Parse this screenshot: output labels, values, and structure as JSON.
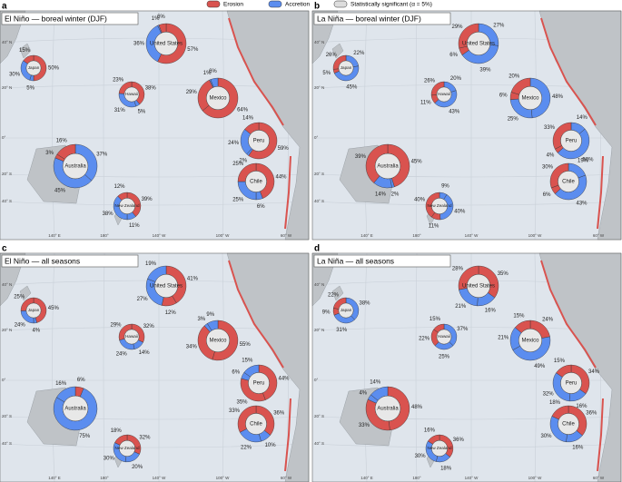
{
  "legend": {
    "erosion": "Erosion",
    "accretion": "Accretion",
    "significant": "Statistically significant (α = 5%)"
  },
  "colors": {
    "erosion": "#d9534f",
    "accretion": "#5b8def"
  },
  "map": {
    "lon_labels": [
      "140° E",
      "180°",
      "140° W",
      "100° W",
      "60° W"
    ],
    "lat_labels": [
      "40° N",
      "20° N",
      "0°",
      "20° S",
      "40° S"
    ]
  },
  "panels": [
    {
      "letter": "a",
      "title": "El Niño — boreal winter (DJF)",
      "donuts": [
        {
          "name": "Japan",
          "values": [
            50,
            5,
            30,
            15
          ],
          "value_labels": [
            "50%",
            "5%",
            "30%",
            "15%"
          ],
          "kinds": [
            "erosion",
            "accretion",
            "accretion",
            "erosion"
          ]
        },
        {
          "name": "United States",
          "values": [
            57,
            36,
            1,
            6
          ],
          "value_labels": [
            "57%",
            "36%",
            "1%",
            "6%"
          ],
          "kinds": [
            "erosion",
            "accretion",
            "accretion",
            "erosion"
          ]
        },
        {
          "name": "Hawaii",
          "values": [
            38,
            5,
            31,
            23
          ],
          "value_labels": [
            "38%",
            "5%",
            "31%",
            "23%"
          ],
          "kinds": [
            "erosion",
            "accretion",
            "accretion",
            "erosion"
          ]
        },
        {
          "name": "Mexico",
          "values": [
            64,
            29,
            1,
            6
          ],
          "value_labels": [
            "64%",
            "29%",
            "1%",
            "6%"
          ],
          "kinds": [
            "erosion",
            "erosion",
            "accretion",
            "accretion"
          ]
        },
        {
          "name": "Peru",
          "values": [
            59,
            2,
            24,
            14
          ],
          "value_labels": [
            "59%",
            "2%",
            "24%",
            "14%"
          ],
          "kinds": [
            "erosion",
            "accretion",
            "accretion",
            "erosion"
          ]
        },
        {
          "name": "Australia",
          "values": [
            37,
            45,
            3,
            16
          ],
          "value_labels": [
            "37%",
            "45%",
            "3%",
            "16%"
          ],
          "kinds": [
            "accretion",
            "accretion",
            "erosion",
            "erosion"
          ]
        },
        {
          "name": "Chile",
          "values": [
            44,
            6,
            25,
            25
          ],
          "value_labels": [
            "44%",
            "6%",
            "25%",
            "25%"
          ],
          "kinds": [
            "erosion",
            "accretion",
            "accretion",
            "erosion"
          ]
        },
        {
          "name": "New Zealand",
          "values": [
            39,
            11,
            38,
            12
          ],
          "value_labels": [
            "39%",
            "11%",
            "38%",
            "12%"
          ],
          "kinds": [
            "erosion",
            "accretion",
            "accretion",
            "erosion"
          ]
        }
      ]
    },
    {
      "letter": "b",
      "title": "La Niña — boreal winter (DJF)",
      "donuts": [
        {
          "name": "Japan",
          "values": [
            22,
            45,
            5,
            26
          ],
          "value_labels": [
            "22%",
            "45%",
            "5%",
            "26%"
          ],
          "kinds": [
            "accretion",
            "accretion",
            "erosion",
            "erosion"
          ]
        },
        {
          "name": "United States",
          "values": [
            27,
            39,
            6,
            29
          ],
          "value_labels": [
            "27%",
            "39%",
            "6%",
            "29%"
          ],
          "kinds": [
            "accretion",
            "accretion",
            "erosion",
            "erosion"
          ]
        },
        {
          "name": "Hawaii",
          "values": [
            20,
            43,
            11,
            26
          ],
          "value_labels": [
            "20%",
            "43%",
            "11%",
            "26%"
          ],
          "kinds": [
            "accretion",
            "accretion",
            "erosion",
            "erosion"
          ]
        },
        {
          "name": "Mexico",
          "values": [
            48,
            25,
            6,
            20
          ],
          "value_labels": [
            "48%",
            "25%",
            "6%",
            "20%"
          ],
          "kinds": [
            "accretion",
            "accretion",
            "erosion",
            "erosion"
          ]
        },
        {
          "name": "Peru",
          "values": [
            14,
            50,
            4,
            33
          ],
          "value_labels": [
            "14%",
            "50%",
            "4%",
            "33%"
          ],
          "kinds": [
            "accretion",
            "accretion",
            "erosion",
            "erosion"
          ]
        },
        {
          "name": "Australia",
          "values": [
            45,
            2,
            14,
            39
          ],
          "value_labels": [
            "45%",
            "2%",
            "14%",
            "39%"
          ],
          "kinds": [
            "erosion",
            "accretion",
            "accretion",
            "erosion"
          ]
        },
        {
          "name": "Chile",
          "values": [
            19,
            43,
            6,
            30
          ],
          "value_labels": [
            "19%",
            "43%",
            "6%",
            "30%"
          ],
          "kinds": [
            "accretion",
            "accretion",
            "erosion",
            "erosion"
          ]
        },
        {
          "name": "New Zealand",
          "values": [
            9,
            40,
            11,
            40
          ],
          "value_labels": [
            "9%",
            "40%",
            "11%",
            "40%"
          ],
          "kinds": [
            "accretion",
            "accretion",
            "erosion",
            "erosion"
          ]
        }
      ]
    },
    {
      "letter": "c",
      "title": "El Niño — all seasons",
      "donuts": [
        {
          "name": "Japan",
          "values": [
            45,
            4,
            24,
            25
          ],
          "value_labels": [
            "45%",
            "4%",
            "24%",
            "25%"
          ],
          "kinds": [
            "erosion",
            "accretion",
            "accretion",
            "erosion"
          ]
        },
        {
          "name": "United States",
          "values": [
            41,
            12,
            27,
            19
          ],
          "value_labels": [
            "41%",
            "12%",
            "27%",
            "19%"
          ],
          "kinds": [
            "erosion",
            "erosion",
            "accretion",
            "accretion"
          ]
        },
        {
          "name": "Hawaii",
          "values": [
            32,
            14,
            24,
            29
          ],
          "value_labels": [
            "32%",
            "14%",
            "24%",
            "29%"
          ],
          "kinds": [
            "erosion",
            "accretion",
            "accretion",
            "erosion"
          ]
        },
        {
          "name": "Mexico",
          "values": [
            55,
            34,
            3,
            9
          ],
          "value_labels": [
            "55%",
            "34%",
            "3%",
            "9%"
          ],
          "kinds": [
            "erosion",
            "erosion",
            "accretion",
            "accretion"
          ]
        },
        {
          "name": "Peru",
          "values": [
            44,
            35,
            6,
            15
          ],
          "value_labels": [
            "44%",
            "35%",
            "6%",
            "15%"
          ],
          "kinds": [
            "erosion",
            "erosion",
            "accretion",
            "accretion"
          ]
        },
        {
          "name": "Australia",
          "values": [
            6,
            75,
            16
          ],
          "value_labels": [
            "6%",
            "75%",
            "16%"
          ],
          "kinds": [
            "erosion",
            "accretion",
            "accretion"
          ]
        },
        {
          "name": "Chile",
          "values": [
            36,
            10,
            22,
            33
          ],
          "value_labels": [
            "36%",
            "10%",
            "22%",
            "33%"
          ],
          "kinds": [
            "erosion",
            "accretion",
            "accretion",
            "erosion"
          ]
        },
        {
          "name": "New Zealand",
          "values": [
            32,
            20,
            30,
            18
          ],
          "value_labels": [
            "32%",
            "20%",
            "30%",
            "18%"
          ],
          "kinds": [
            "erosion",
            "accretion",
            "accretion",
            "erosion"
          ]
        }
      ]
    },
    {
      "letter": "d",
      "title": "La Niña — all seasons",
      "donuts": [
        {
          "name": "Japan",
          "values": [
            38,
            31,
            9,
            22
          ],
          "value_labels": [
            "38%",
            "31%",
            "9%",
            "22%"
          ],
          "kinds": [
            "accretion",
            "accretion",
            "erosion",
            "erosion"
          ]
        },
        {
          "name": "United States",
          "values": [
            35,
            16,
            21,
            28
          ],
          "value_labels": [
            "35%",
            "16%",
            "21%",
            "28%"
          ],
          "kinds": [
            "erosion",
            "accretion",
            "accretion",
            "erosion"
          ]
        },
        {
          "name": "Hawaii",
          "values": [
            37,
            25,
            22,
            15
          ],
          "value_labels": [
            "37%",
            "25%",
            "22%",
            "15%"
          ],
          "kinds": [
            "accretion",
            "accretion",
            "erosion",
            "erosion"
          ]
        },
        {
          "name": "Mexico",
          "values": [
            24,
            49,
            21,
            15
          ],
          "value_labels": [
            "24%",
            "49%",
            "21%",
            "15%"
          ],
          "kinds": [
            "erosion",
            "accretion",
            "accretion",
            "erosion"
          ]
        },
        {
          "name": "Peru",
          "values": [
            34,
            16,
            32,
            15
          ],
          "value_labels": [
            "34%",
            "16%",
            "32%",
            "15%"
          ],
          "kinds": [
            "erosion",
            "accretion",
            "accretion",
            "erosion"
          ]
        },
        {
          "name": "Australia",
          "values": [
            48,
            33,
            4,
            14
          ],
          "value_labels": [
            "48%",
            "33%",
            "4%",
            "14%"
          ],
          "kinds": [
            "erosion",
            "erosion",
            "accretion",
            "accretion"
          ]
        },
        {
          "name": "Chile",
          "values": [
            36,
            16,
            30,
            18
          ],
          "value_labels": [
            "36%",
            "16%",
            "30%",
            "18%"
          ],
          "kinds": [
            "erosion",
            "accretion",
            "accretion",
            "erosion"
          ]
        },
        {
          "name": "New Zealand",
          "values": [
            36,
            18,
            30,
            16
          ],
          "value_labels": [
            "36%",
            "18%",
            "30%",
            "16%"
          ],
          "kinds": [
            "erosion",
            "accretion",
            "accretion",
            "erosion"
          ]
        }
      ]
    }
  ]
}
